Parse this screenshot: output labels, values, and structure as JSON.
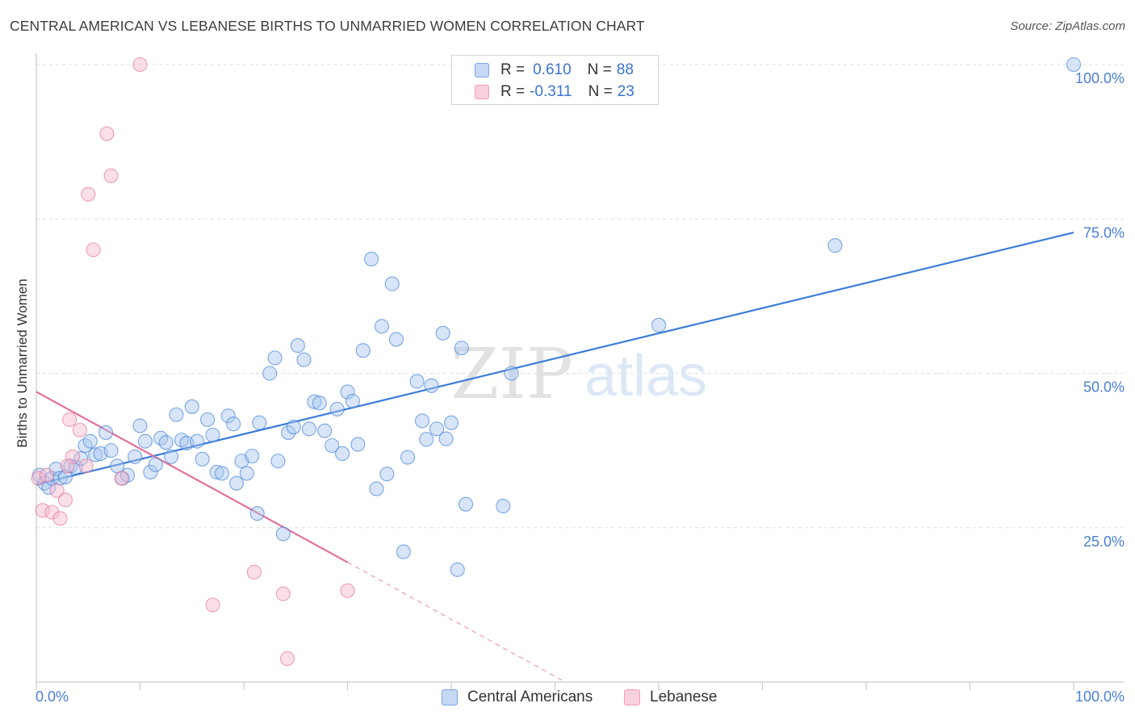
{
  "title": "CENTRAL AMERICAN VS LEBANESE BIRTHS TO UNMARRIED WOMEN CORRELATION CHART",
  "source": "Source: ZipAtlas.com",
  "watermark": {
    "zip": "ZIP",
    "atlas": "atlas"
  },
  "legend": {
    "r_label": "R =",
    "n_label": "N =",
    "rows": [
      {
        "r": "0.610",
        "n": "88",
        "color": "#a9c6f0"
      },
      {
        "r": "-0.311",
        "n": "23",
        "color": "#f6b8cb"
      }
    ]
  },
  "bottom_legend": [
    "Central Americans",
    "Lebanese"
  ],
  "chart_data": {
    "type": "scatter",
    "title": "CENTRAL AMERICAN VS LEBANESE BIRTHS TO UNMARRIED WOMEN CORRELATION CHART",
    "xlabel": "",
    "ylabel": "Births to Unmarried Women",
    "xlim": [
      0,
      100
    ],
    "ylim": [
      0,
      100
    ],
    "x_tick_labels": [
      "0.0%",
      "100.0%"
    ],
    "y_ticks": [
      25,
      50,
      75,
      100
    ],
    "y_tick_labels": [
      "25.0%",
      "50.0%",
      "75.0%",
      "100.0%"
    ],
    "grid": true,
    "series": [
      {
        "name": "Central Americans",
        "color": "#3b7dd8",
        "fill": "#a9c6f0",
        "trend": {
          "x": [
            0,
            100
          ],
          "y": [
            32.0,
            72.8
          ],
          "style": "solid"
        },
        "points": [
          [
            0.3,
            33.5
          ],
          [
            0.8,
            32.2
          ],
          [
            1.2,
            31.5
          ],
          [
            1.5,
            33.0
          ],
          [
            1.9,
            34.5
          ],
          [
            2.3,
            33.0
          ],
          [
            2.8,
            33.2
          ],
          [
            3.3,
            35.0
          ],
          [
            3.8,
            34.8
          ],
          [
            4.3,
            36.2
          ],
          [
            4.7,
            38.3
          ],
          [
            5.2,
            39.0
          ],
          [
            5.7,
            36.8
          ],
          [
            6.2,
            37.0
          ],
          [
            6.7,
            40.4
          ],
          [
            7.2,
            37.5
          ],
          [
            7.8,
            35.0
          ],
          [
            8.3,
            33.0
          ],
          [
            8.8,
            33.5
          ],
          [
            9.5,
            36.5
          ],
          [
            10.0,
            41.5
          ],
          [
            10.5,
            39.0
          ],
          [
            11.0,
            34.0
          ],
          [
            11.5,
            35.2
          ],
          [
            12.0,
            39.5
          ],
          [
            12.5,
            38.8
          ],
          [
            13.0,
            36.5
          ],
          [
            13.5,
            43.3
          ],
          [
            14.0,
            39.2
          ],
          [
            14.5,
            38.7
          ],
          [
            15.0,
            44.6
          ],
          [
            15.5,
            39.0
          ],
          [
            16.0,
            36.1
          ],
          [
            16.5,
            42.5
          ],
          [
            17.0,
            40.0
          ],
          [
            17.4,
            34.0
          ],
          [
            17.9,
            33.8
          ],
          [
            18.5,
            43.1
          ],
          [
            19.0,
            41.8
          ],
          [
            19.3,
            32.2
          ],
          [
            19.8,
            35.8
          ],
          [
            20.3,
            33.8
          ],
          [
            20.8,
            36.6
          ],
          [
            21.3,
            27.3
          ],
          [
            21.5,
            42.0
          ],
          [
            22.5,
            50.0
          ],
          [
            23.0,
            52.5
          ],
          [
            23.3,
            35.8
          ],
          [
            23.8,
            24.0
          ],
          [
            24.3,
            40.4
          ],
          [
            24.8,
            41.3
          ],
          [
            25.2,
            54.5
          ],
          [
            25.8,
            52.2
          ],
          [
            26.3,
            41.0
          ],
          [
            26.8,
            45.4
          ],
          [
            27.3,
            45.2
          ],
          [
            27.8,
            40.7
          ],
          [
            28.5,
            38.3
          ],
          [
            29.0,
            44.2
          ],
          [
            29.5,
            37.0
          ],
          [
            30.0,
            47.0
          ],
          [
            30.5,
            45.5
          ],
          [
            31.0,
            38.5
          ],
          [
            31.5,
            53.7
          ],
          [
            32.3,
            68.5
          ],
          [
            32.8,
            31.3
          ],
          [
            33.3,
            57.6
          ],
          [
            33.8,
            33.7
          ],
          [
            34.3,
            64.5
          ],
          [
            34.7,
            55.5
          ],
          [
            35.4,
            21.1
          ],
          [
            35.8,
            36.4
          ],
          [
            36.7,
            48.7
          ],
          [
            37.2,
            42.3
          ],
          [
            37.6,
            39.3
          ],
          [
            38.1,
            48.0
          ],
          [
            38.6,
            41.0
          ],
          [
            39.2,
            56.5
          ],
          [
            39.5,
            39.4
          ],
          [
            40.0,
            42.0
          ],
          [
            40.6,
            18.2
          ],
          [
            41.0,
            54.1
          ],
          [
            41.4,
            28.8
          ],
          [
            45.0,
            28.5
          ],
          [
            45.8,
            50.0
          ],
          [
            60.0,
            57.8
          ],
          [
            77.0,
            70.7
          ],
          [
            100.0,
            100.0
          ]
        ]
      },
      {
        "name": "Lebanese",
        "color": "#e4709a",
        "fill": "#f6b8cb",
        "trend": {
          "x": [
            0,
            30.0
          ],
          "y": [
            47.0,
            19.4
          ],
          "style": "solid",
          "extended": {
            "x": [
              30.0,
              51.0
            ],
            "y": [
              19.4,
              0.0
            ],
            "style": "dashed"
          }
        },
        "points": [
          [
            0.2,
            33.0
          ],
          [
            0.6,
            27.8
          ],
          [
            1.0,
            33.5
          ],
          [
            1.5,
            27.5
          ],
          [
            2.0,
            31.0
          ],
          [
            2.3,
            26.5
          ],
          [
            2.8,
            29.5
          ],
          [
            3.2,
            42.5
          ],
          [
            3.5,
            36.5
          ],
          [
            4.2,
            40.8
          ],
          [
            4.8,
            35.0
          ],
          [
            5.0,
            79.0
          ],
          [
            5.5,
            70.0
          ],
          [
            6.8,
            88.8
          ],
          [
            7.2,
            82.0
          ],
          [
            8.2,
            33.0
          ],
          [
            10.0,
            100.0
          ],
          [
            17.0,
            12.5
          ],
          [
            21.0,
            17.8
          ],
          [
            23.8,
            14.3
          ],
          [
            24.2,
            3.8
          ],
          [
            30.0,
            14.8
          ],
          [
            3.0,
            35.0
          ]
        ]
      }
    ]
  }
}
